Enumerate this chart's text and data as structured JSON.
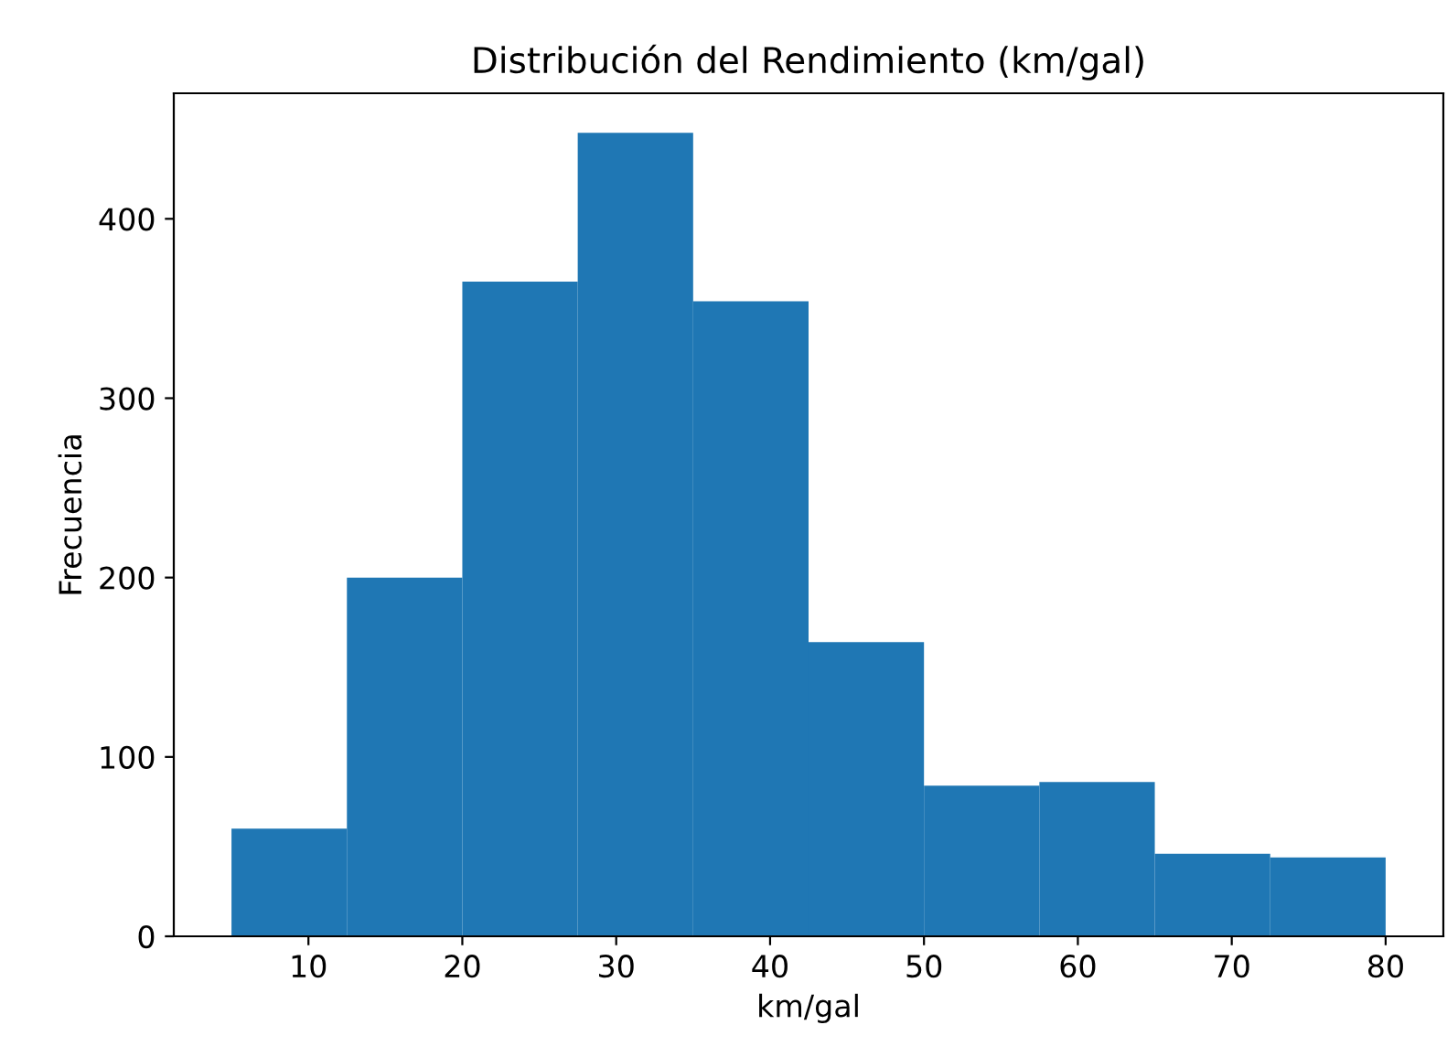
{
  "chart_data": {
    "type": "histogram",
    "title": "Distribución del Rendimiento (km/gal)",
    "xlabel": "km/gal",
    "ylabel": "Frecuencia",
    "bins": [
      5,
      12.5,
      20,
      27.5,
      35,
      42.5,
      50,
      57.5,
      65,
      72.5,
      80
    ],
    "values": [
      60,
      200,
      365,
      448,
      354,
      164,
      84,
      86,
      46,
      44
    ],
    "color": "#1f77b4",
    "xlim": [
      1.25,
      83.75
    ],
    "ylim": [
      0,
      470
    ],
    "xticks": [
      10,
      20,
      30,
      40,
      50,
      60,
      70,
      80
    ],
    "yticks": [
      0,
      100,
      200,
      300,
      400
    ],
    "grid": false,
    "legend": false
  }
}
